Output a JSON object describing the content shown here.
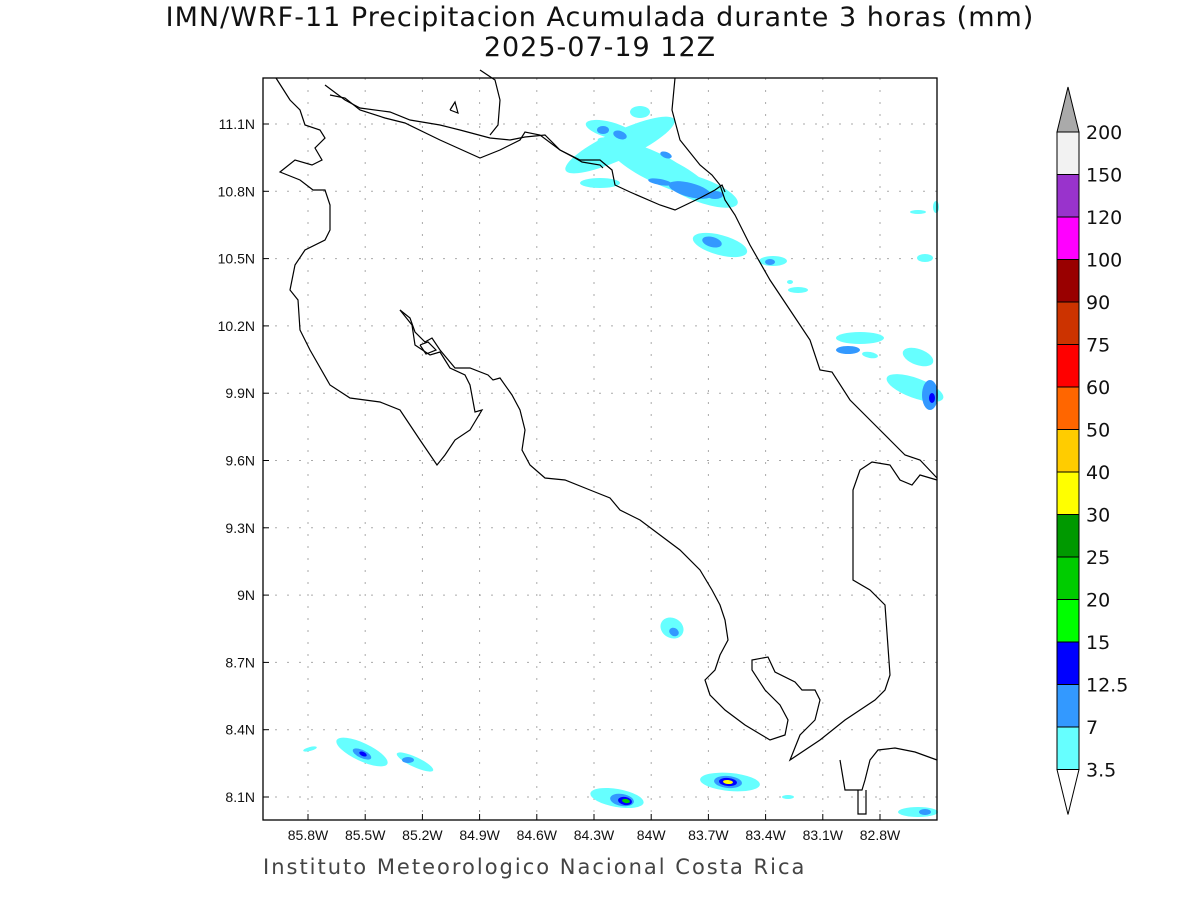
{
  "title": "IMN/WRF-11 Precipitacion Acumulada durante 3 horas (mm)",
  "subtitle": "2025-07-19 12Z",
  "footer": "Instituto Meteorologico Nacional Costa Rica",
  "map": {
    "lon_labels": [
      "85.8W",
      "85.5W",
      "85.2W",
      "84.9W",
      "84.6W",
      "84.3W",
      "84W",
      "83.7W",
      "83.4W",
      "83.1W",
      "82.8W"
    ],
    "lat_labels": [
      "11.1N",
      "10.8N",
      "10.5N",
      "10.2N",
      "9.9N",
      "9.6N",
      "9.3N",
      "9N",
      "8.7N",
      "8.4N",
      "8.1N"
    ]
  },
  "colorbar": {
    "unit": "mm",
    "labels": [
      "3.5",
      "7",
      "12.5",
      "15",
      "20",
      "25",
      "30",
      "40",
      "50",
      "60",
      "75",
      "90",
      "100",
      "120",
      "150",
      "200"
    ],
    "colors": [
      "#66ffff",
      "#3399ff",
      "#0000ff",
      "#00ff00",
      "#00cc00",
      "#009900",
      "#ffff00",
      "#ffcc00",
      "#ff6600",
      "#ff0000",
      "#cc3300",
      "#990000",
      "#ff00ff",
      "#9933cc",
      "#f2f2f2"
    ],
    "over_color": "#aaaaaa",
    "under_color": "#ffffff"
  }
}
